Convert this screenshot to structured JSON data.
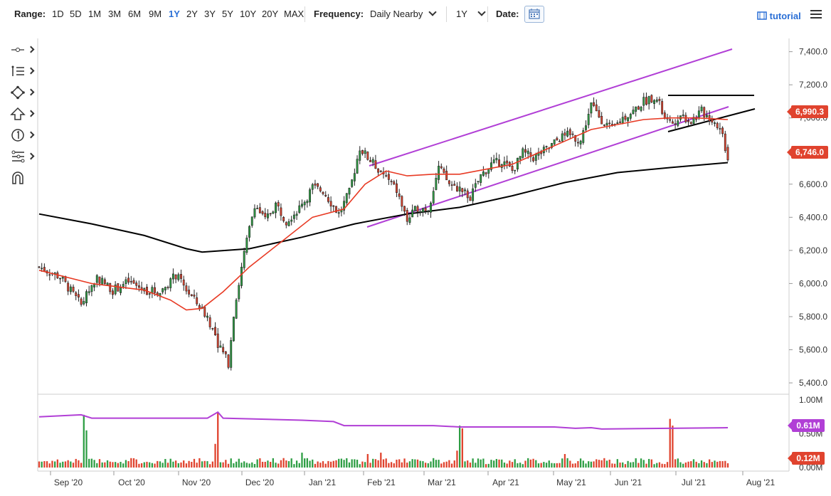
{
  "toolbar": {
    "range_label": "Range:",
    "ranges": [
      "1D",
      "5D",
      "1M",
      "3M",
      "6M",
      "9M",
      "1Y",
      "2Y",
      "3Y",
      "5Y",
      "10Y",
      "20Y",
      "MAX"
    ],
    "active_range": "1Y",
    "frequency_label": "Frequency:",
    "frequency_value": "Daily Nearby",
    "period_value": "1Y",
    "date_label": "Date:",
    "tutorial_label": "tutorial"
  },
  "drawing_tools": [
    "crosshair-tool-icon",
    "line-tool-icon",
    "shape-tool-icon",
    "arrow-tool-icon",
    "annotation-tool-icon",
    "fibonacci-tool-icon",
    "magnet-tool-icon"
  ],
  "colors": {
    "up": "#2e9e44",
    "down": "#e0432e",
    "ma_fast": "#e83a24",
    "ma_slow": "#000000",
    "channel": "#b13fd6",
    "volume_avg": "#b13fd6",
    "price_badge": "#e0432e",
    "volume_badge": "#b13fd6"
  },
  "chart_data": {
    "type": "candlestick",
    "price_axis": {
      "ticks": [
        "7,400.0",
        "7,200.0",
        "7,000.0",
        "6,800.0",
        "6,600.0",
        "6,400.0",
        "6,200.0",
        "6,000.0",
        "5,800.0",
        "5,600.0",
        "5,400.0"
      ],
      "range": [
        5340,
        7480
      ]
    },
    "volume_axis": {
      "ticks": [
        "1.00M",
        "0.50M",
        "0.00M"
      ],
      "range": [
        0,
        1.0
      ]
    },
    "x_ticks": [
      "Sep '20",
      "Oct '20",
      "Nov '20",
      "Dec '20",
      "Jan '21",
      "Feb '21",
      "Mar '21",
      "Apr '21",
      "May '21",
      "Jun '21",
      "Jul '21",
      "Aug '21"
    ],
    "last_price_label": "6,746.0",
    "ma_fast_label": "6,990.3",
    "volume_avg_label": "0.61M",
    "volume_last_label": "0.12M",
    "price_path": [
      [
        0,
        6100
      ],
      [
        8,
        6040
      ],
      [
        16,
        5870
      ],
      [
        22,
        6040
      ],
      [
        28,
        5960
      ],
      [
        34,
        6010
      ],
      [
        40,
        5960
      ],
      [
        46,
        5950
      ],
      [
        52,
        6050
      ],
      [
        58,
        5920
      ],
      [
        64,
        5800
      ],
      [
        68,
        5640
      ],
      [
        72,
        5520
      ],
      [
        74,
        5820
      ],
      [
        78,
        6180
      ],
      [
        82,
        6480
      ],
      [
        86,
        6380
      ],
      [
        90,
        6480
      ],
      [
        94,
        6380
      ],
      [
        100,
        6470
      ],
      [
        104,
        6580
      ],
      [
        108,
        6560
      ],
      [
        114,
        6420
      ],
      [
        118,
        6550
      ],
      [
        122,
        6820
      ],
      [
        126,
        6740
      ],
      [
        130,
        6680
      ],
      [
        136,
        6560
      ],
      [
        140,
        6380
      ],
      [
        144,
        6460
      ],
      [
        148,
        6450
      ],
      [
        152,
        6700
      ],
      [
        156,
        6600
      ],
      [
        160,
        6570
      ],
      [
        164,
        6520
      ],
      [
        168,
        6650
      ],
      [
        172,
        6720
      ],
      [
        176,
        6740
      ],
      [
        180,
        6680
      ],
      [
        184,
        6790
      ],
      [
        188,
        6760
      ],
      [
        194,
        6820
      ],
      [
        198,
        6880
      ],
      [
        202,
        6900
      ],
      [
        206,
        6860
      ],
      [
        210,
        7080
      ],
      [
        214,
        6990
      ],
      [
        218,
        6930
      ],
      [
        222,
        7000
      ],
      [
        226,
        7040
      ],
      [
        230,
        7100
      ],
      [
        234,
        7130
      ],
      [
        236,
        7080
      ],
      [
        238,
        6990
      ],
      [
        240,
        6960
      ],
      [
        244,
        7020
      ],
      [
        248,
        6980
      ],
      [
        252,
        7040
      ],
      [
        256,
        6990
      ],
      [
        258,
        6960
      ],
      [
        260,
        6900
      ],
      [
        262,
        6746
      ]
    ],
    "ma_fast": [
      [
        0,
        6080
      ],
      [
        20,
        6000
      ],
      [
        40,
        5960
      ],
      [
        50,
        5900
      ],
      [
        56,
        5840
      ],
      [
        62,
        5850
      ],
      [
        70,
        5950
      ],
      [
        80,
        6100
      ],
      [
        92,
        6250
      ],
      [
        104,
        6400
      ],
      [
        116,
        6450
      ],
      [
        124,
        6600
      ],
      [
        132,
        6680
      ],
      [
        140,
        6650
      ],
      [
        150,
        6660
      ],
      [
        160,
        6660
      ],
      [
        170,
        6690
      ],
      [
        180,
        6720
      ],
      [
        190,
        6790
      ],
      [
        200,
        6860
      ],
      [
        210,
        6930
      ],
      [
        220,
        6960
      ],
      [
        230,
        6990
      ],
      [
        240,
        7000
      ],
      [
        250,
        7000
      ],
      [
        262,
        6990
      ]
    ],
    "ma_slow": [
      [
        0,
        6420
      ],
      [
        20,
        6360
      ],
      [
        40,
        6290
      ],
      [
        56,
        6210
      ],
      [
        62,
        6190
      ],
      [
        80,
        6210
      ],
      [
        100,
        6280
      ],
      [
        120,
        6360
      ],
      [
        140,
        6420
      ],
      [
        160,
        6460
      ],
      [
        180,
        6530
      ],
      [
        200,
        6610
      ],
      [
        220,
        6670
      ],
      [
        240,
        6700
      ],
      [
        262,
        6730
      ]
    ],
    "volume_avg": [
      [
        0,
        0.75
      ],
      [
        16,
        0.78
      ],
      [
        20,
        0.73
      ],
      [
        40,
        0.73
      ],
      [
        64,
        0.73
      ],
      [
        68,
        0.82
      ],
      [
        70,
        0.73
      ],
      [
        100,
        0.7
      ],
      [
        112,
        0.68
      ],
      [
        116,
        0.62
      ],
      [
        150,
        0.62
      ],
      [
        160,
        0.6
      ],
      [
        190,
        0.6
      ],
      [
        196,
        0.6
      ],
      [
        204,
        0.58
      ],
      [
        210,
        0.59
      ],
      [
        214,
        0.57
      ],
      [
        262,
        0.59
      ]
    ]
  }
}
